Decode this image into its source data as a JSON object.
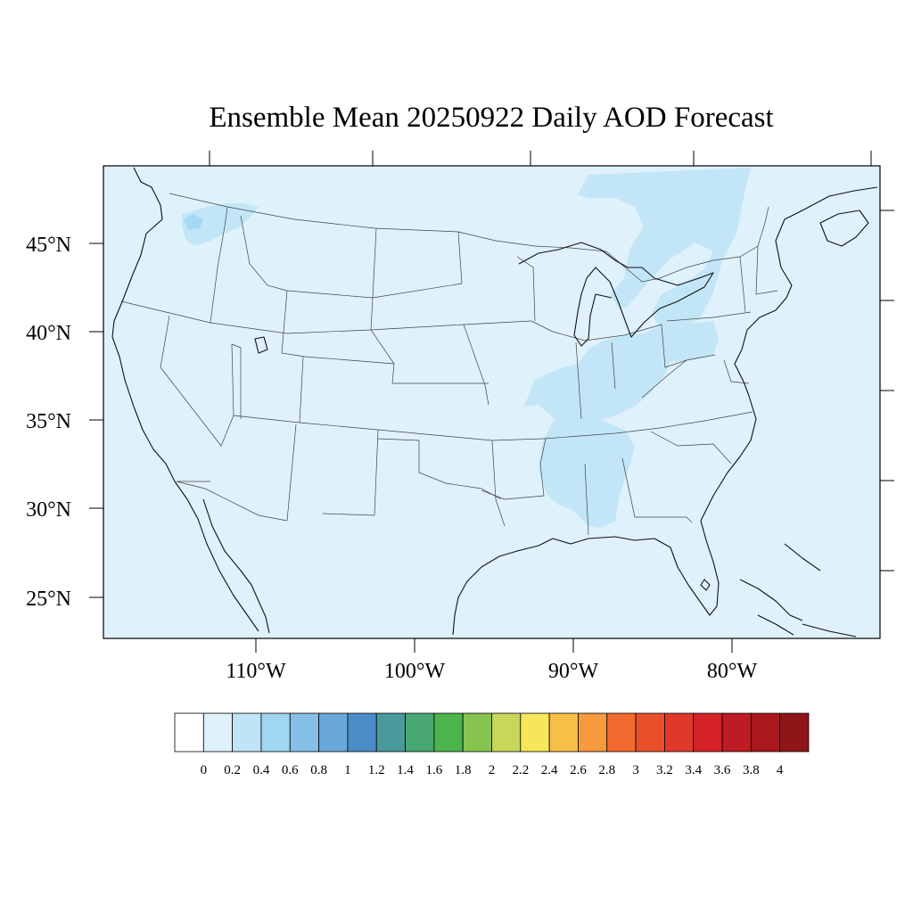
{
  "title": "Ensemble Mean 20250922 Daily AOD Forecast",
  "map": {
    "projection": "lambert-conformal",
    "background_level_color": "#dff1fa",
    "lat_labels": [
      "45°N",
      "40°N",
      "35°N",
      "30°N",
      "25°N"
    ],
    "lon_labels": [
      "110°W",
      "100°W",
      "90°W",
      "80°W"
    ],
    "overlays": {
      "outlines": [
        "coastline",
        "state-borders",
        "country-borders"
      ]
    },
    "aod_regions": [
      {
        "name": "northeast-plume",
        "level": 0.2,
        "color": "#c2e6f8"
      },
      {
        "name": "ohio-tennessee-valley",
        "level": 0.2,
        "color": "#c2e6f8"
      },
      {
        "name": "mississippi-alabama",
        "level": 0.2,
        "color": "#c2e6f8"
      },
      {
        "name": "pennsylvania",
        "level": 0.2,
        "color": "#c2e6f8"
      },
      {
        "name": "northern-idaho",
        "level": 0.2,
        "color": "#c2e6f8"
      },
      {
        "name": "idaho-hotspot",
        "level": 0.4,
        "color": "#a5d9f3"
      }
    ]
  },
  "colorbar": {
    "labels": [
      "0",
      "0.2",
      "0.4",
      "0.6",
      "0.8",
      "1",
      "1.2",
      "1.4",
      "1.6",
      "1.8",
      "2",
      "2.2",
      "2.4",
      "2.6",
      "2.8",
      "3",
      "3.2",
      "3.4",
      "3.6",
      "3.8",
      "4"
    ],
    "colors": [
      "#ffffff",
      "#dff1fa",
      "#bfe4f7",
      "#a0d6f1",
      "#86bfe6",
      "#6aa7da",
      "#4a8cc8",
      "#4a9a9c",
      "#48a773",
      "#4bb44b",
      "#86c44f",
      "#c6d75a",
      "#f8e65a",
      "#f8bf48",
      "#f69a3d",
      "#f26a2e",
      "#ea4f2c",
      "#e0392a",
      "#d42228",
      "#bf1b22",
      "#a8181d",
      "#901519"
    ]
  }
}
